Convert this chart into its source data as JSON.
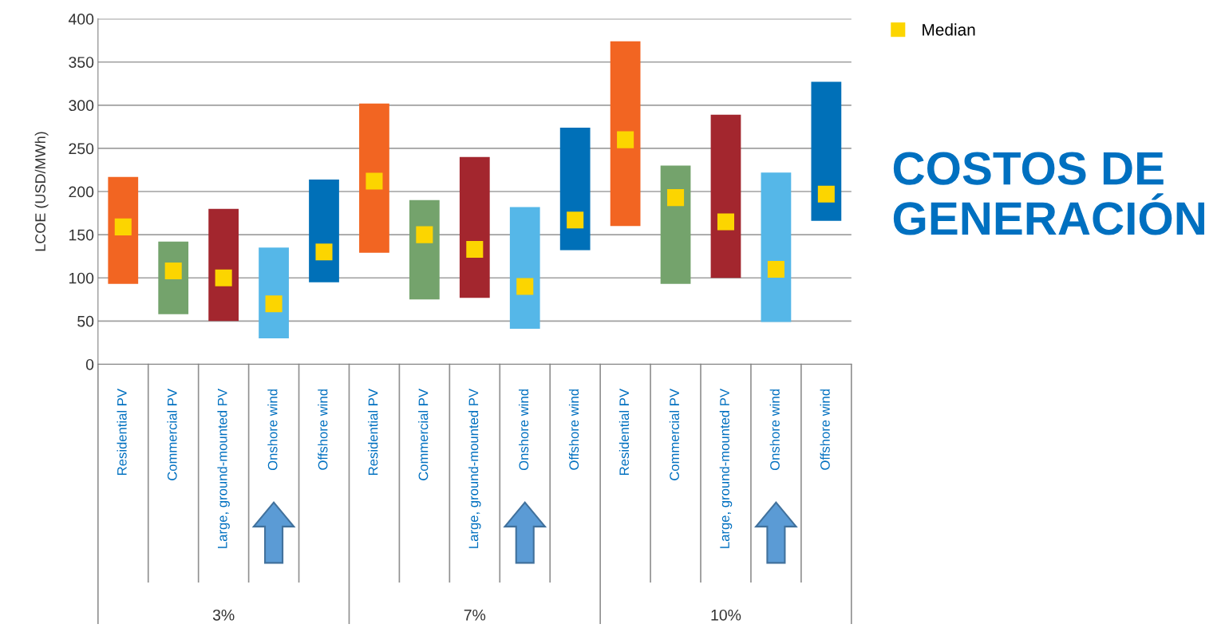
{
  "chart_data": {
    "type": "bar",
    "title": "COSTOS DE GENERACIÓN",
    "ylabel": "LCOE (USD/MWh)",
    "categories": [
      "Residential PV",
      "Commercial PV",
      "Large, ground-mounted PV",
      "Onshore wind",
      "Offshore wind",
      "Residential PV",
      "Commercial PV",
      "Large, ground-mounted PV",
      "Onshore wind",
      "Offshore wind",
      "Residential PV",
      "Commercial PV",
      "Large, ground-mounted PV",
      "Onshore wind",
      "Offshore wind"
    ],
    "series": [
      {
        "base": [
          93,
          58,
          50,
          30,
          95,
          129,
          75,
          77,
          41,
          132,
          160,
          93,
          100,
          49,
          166
        ],
        "values": [
          124,
          84,
          130,
          105,
          119,
          173,
          115,
          163,
          141,
          142,
          214,
          137,
          189,
          173,
          161
        ],
        "colors": [
          "#f26522",
          "#74a36c",
          "#a3262e",
          "#55b7e8",
          "#0070b8",
          "#f26522",
          "#74a36c",
          "#a3262e",
          "#55b7e8",
          "#0070b8",
          "#f26522",
          "#74a36c",
          "#a3262e",
          "#55b7e8",
          "#0070b8"
        ]
      },
      {
        "type": "scatter",
        "name": "Median",
        "color": "#fcd500",
        "marker": "square",
        "values": [
          159,
          108,
          100,
          70,
          130,
          212,
          150,
          133,
          90,
          167,
          260,
          193,
          165,
          110,
          197
        ]
      }
    ],
    "ylim": [
      0,
      400
    ],
    "yticks": [
      0,
      50,
      100,
      150,
      200,
      250,
      300,
      350,
      400
    ],
    "grid": "y",
    "legend": "top right",
    "annotations": [
      "3%",
      "7%",
      "10%"
    ]
  }
}
